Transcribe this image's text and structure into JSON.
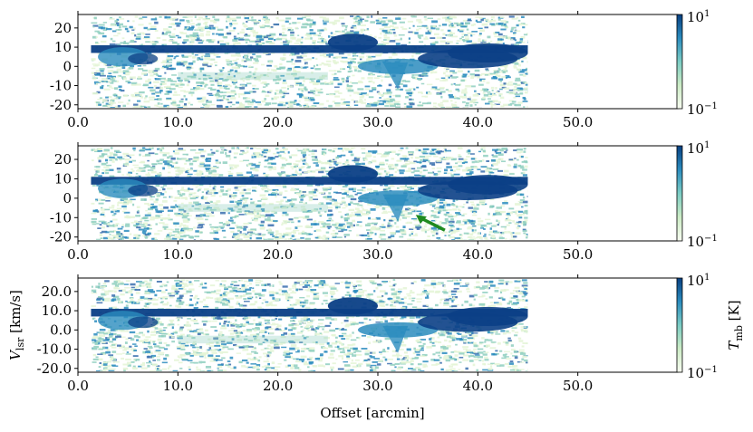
{
  "figure": {
    "xlabel": "Offset [arcmin]",
    "cbar_label_main": "T",
    "cbar_label_sub": "mb",
    "cbar_label_unit": " [K]"
  },
  "colors": {
    "dark": "#0b3f86",
    "mid": "#2b8cbe",
    "light": "#8fcfc0",
    "pale": "#e4f4d6"
  },
  "chart_data": [
    {
      "type": "heatmap",
      "panel": "top",
      "x_range": [
        0,
        60
      ],
      "y_range": [
        -22,
        27
      ],
      "data_x_extent": [
        1.3,
        45
      ],
      "x_ticks": [
        "0.0",
        "10.0",
        "20.0",
        "30.0",
        "40.0",
        "50.0"
      ],
      "y_ticks": [
        "20",
        "10",
        "0",
        "-10",
        "-20"
      ],
      "y_tick_values": [
        20,
        10,
        0,
        -10,
        -20
      ],
      "colorbar": {
        "scale": "log",
        "min_base": "10",
        "min_exp": "−1",
        "max_base": "10",
        "max_exp": "1"
      },
      "ridge_velocity": 9,
      "ylabel": ""
    },
    {
      "type": "heatmap",
      "panel": "middle",
      "x_range": [
        0,
        60
      ],
      "y_range": [
        -22,
        27
      ],
      "data_x_extent": [
        1.3,
        45
      ],
      "x_ticks": [
        "0.0",
        "10.0",
        "20.0",
        "30.0",
        "40.0",
        "50.0"
      ],
      "y_ticks": [
        "20",
        "10",
        "0",
        "-10",
        "-20"
      ],
      "y_tick_values": [
        20,
        10,
        0,
        -10,
        -20
      ],
      "colorbar": {
        "scale": "log",
        "min_base": "10",
        "min_exp": "−1",
        "max_base": "10",
        "max_exp": "1"
      },
      "ridge_velocity": 9,
      "arrow": {
        "from": [
          36.7,
          -16.5
        ],
        "to": [
          33.8,
          -8.5
        ],
        "color": "#1f8a1f"
      },
      "ylabel": ""
    },
    {
      "type": "heatmap",
      "panel": "bottom",
      "x_range": [
        0,
        60
      ],
      "y_range": [
        -22,
        27
      ],
      "data_x_extent": [
        1.3,
        45
      ],
      "x_ticks": [
        "0.0",
        "10.0",
        "20.0",
        "30.0",
        "40.0",
        "50.0"
      ],
      "y_ticks": [
        "20.0",
        "10.0",
        "0.0",
        "-10.0",
        "-20.0"
      ],
      "y_tick_values": [
        20,
        10,
        0,
        -10,
        -20
      ],
      "colorbar": {
        "scale": "log",
        "min_base": "10",
        "min_exp": "−1",
        "max_base": "10",
        "max_exp": "1"
      },
      "ridge_velocity": 9,
      "ylabel": "V",
      "ylabel_sub": "lsr",
      "ylabel_unit": " [km/s]"
    }
  ]
}
